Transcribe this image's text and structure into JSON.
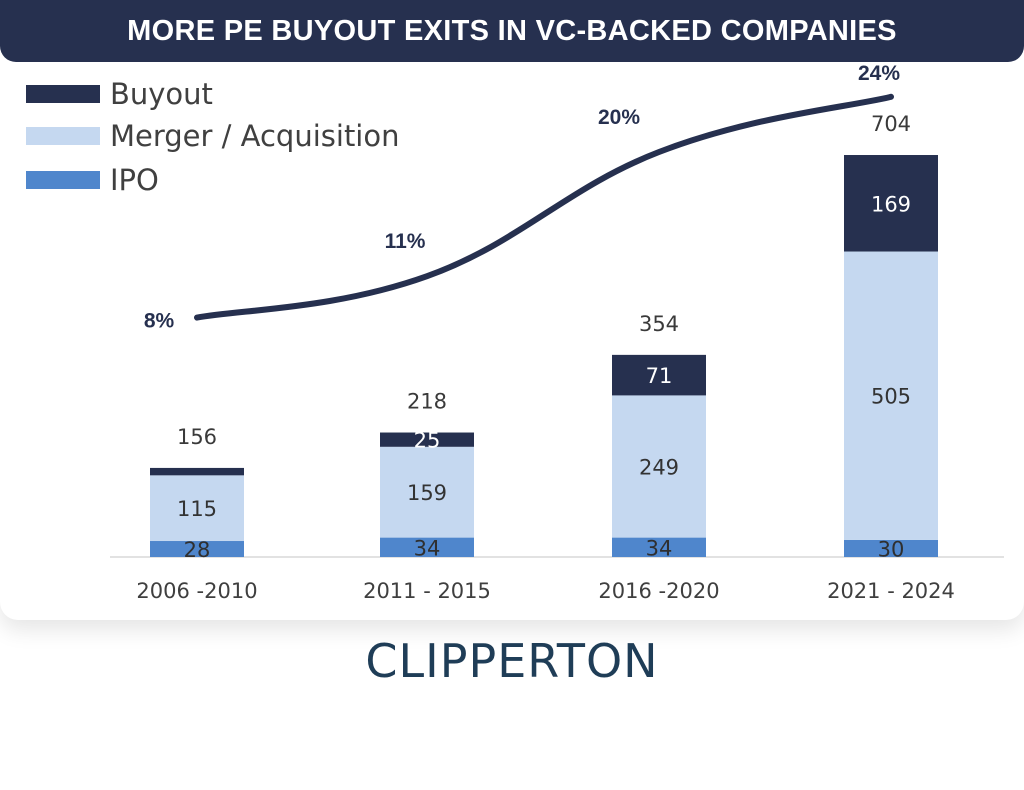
{
  "colors": {
    "buyout": "#26304f",
    "merger": "#c5d8f0",
    "ipo": "#4f86cc",
    "line": "#26304f",
    "title_bg": "#26304f",
    "logo": "#1f3d57"
  },
  "chart_data": {
    "type": "bar",
    "stacked": true,
    "title": "MORE PE BUYOUT EXITS IN VC-BACKED COMPANIES",
    "categories": [
      "2006 -2010",
      "2011 - 2015",
      "2016 -2020",
      "2021 - 2024"
    ],
    "series": [
      {
        "name": "IPO",
        "values": [
          28,
          34,
          34,
          30
        ]
      },
      {
        "name": "Merger / Acquisition",
        "values": [
          115,
          159,
          249,
          505
        ]
      },
      {
        "name": "Buyout",
        "values": [
          13,
          25,
          71,
          169
        ]
      }
    ],
    "totals": [
      "156",
      "218",
      "354",
      "704"
    ],
    "line_series": {
      "values": [
        8,
        11,
        20,
        24
      ],
      "labels": [
        "8%",
        "11%",
        "20%",
        "24%"
      ],
      "unit": "%"
    },
    "ylim": [
      0,
      780
    ],
    "legend": {
      "position": "top-left",
      "order": [
        "Buyout",
        "Merger / Acquisition",
        "IPO"
      ]
    },
    "grid": false
  },
  "branding": {
    "logo_text": "CLIPPERTON"
  }
}
